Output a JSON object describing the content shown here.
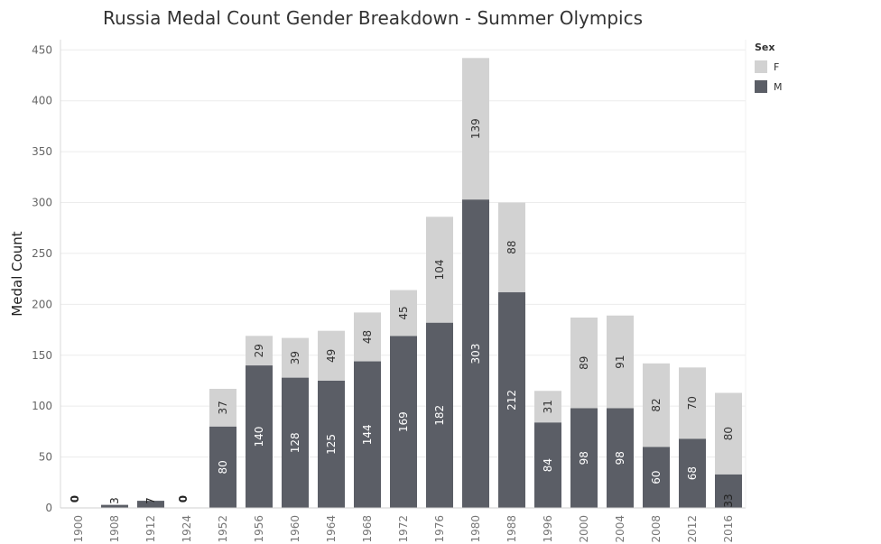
{
  "chart_data": {
    "type": "bar",
    "stacked": true,
    "title": "Russia Medal Count Gender Breakdown - Summer  Olympics",
    "ylabel": "Medal Count",
    "xlabel": "",
    "ylim": [
      0,
      460
    ],
    "yticks": [
      0,
      50,
      100,
      150,
      200,
      250,
      300,
      350,
      400,
      450
    ],
    "grid": true,
    "legend_title": "Sex",
    "legend_position": "top-right",
    "categories": [
      "1900",
      "1908",
      "1912",
      "1924",
      "1952",
      "1956",
      "1960",
      "1964",
      "1968",
      "1972",
      "1976",
      "1980",
      "1988",
      "1996",
      "2000",
      "2004",
      "2008",
      "2012",
      "2016"
    ],
    "series": [
      {
        "name": "M",
        "color": "#5b5e66",
        "values": [
          0,
          3,
          7,
          0,
          80,
          140,
          128,
          125,
          144,
          169,
          182,
          303,
          212,
          84,
          98,
          98,
          60,
          68,
          33
        ]
      },
      {
        "name": "F",
        "color": "#d2d2d2",
        "values": [
          0,
          0,
          0,
          0,
          37,
          29,
          39,
          49,
          48,
          45,
          104,
          139,
          88,
          31,
          89,
          91,
          82,
          70,
          80
        ]
      }
    ]
  }
}
